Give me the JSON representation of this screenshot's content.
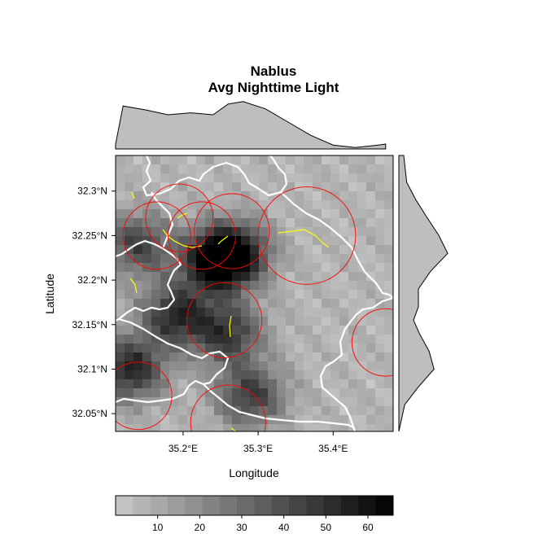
{
  "title": {
    "line1": "Nablus",
    "line2": "Avg Nighttime Light"
  },
  "axes": {
    "xlabel": "Longitude",
    "ylabel": "Latitude",
    "xticks": [
      {
        "value": 35.2,
        "label": "35.2°E"
      },
      {
        "value": 35.3,
        "label": "35.3°E"
      },
      {
        "value": 35.4,
        "label": "35.4°E"
      }
    ],
    "yticks": [
      {
        "value": 32.3,
        "label": "32.3°N"
      },
      {
        "value": 32.25,
        "label": "32.25°N"
      },
      {
        "value": 32.2,
        "label": "32.2°N"
      },
      {
        "value": 32.15,
        "label": "32.15°N"
      },
      {
        "value": 32.1,
        "label": "32.1°N"
      },
      {
        "value": 32.05,
        "label": "32.05°N"
      }
    ]
  },
  "colorbar": {
    "min": 0,
    "max": 66,
    "ticks": [
      {
        "value": 10,
        "label": "10"
      },
      {
        "value": 20,
        "label": "20"
      },
      {
        "value": 30,
        "label": "30"
      },
      {
        "value": 40,
        "label": "40"
      },
      {
        "value": 50,
        "label": "50"
      },
      {
        "value": 60,
        "label": "60"
      }
    ]
  },
  "colors": {
    "raster_low": "#c8c8c8",
    "raster_high": "#000000",
    "boundary": "#ffffff",
    "circles": "#ff0000",
    "roads": "#ffff00",
    "density_fill": "#bebebe"
  },
  "chart_data": {
    "type": "heatmap",
    "title": "Nablus\nAvg Nighttime Light",
    "xlabel": "Longitude",
    "ylabel": "Latitude",
    "xlim": [
      35.11,
      35.48
    ],
    "ylim": [
      32.03,
      32.34
    ],
    "value_range": [
      0,
      66
    ],
    "hotspots": [
      {
        "lon": 35.27,
        "lat": 32.23,
        "value": 62
      },
      {
        "lon": 35.24,
        "lat": 32.22,
        "value": 60
      },
      {
        "lon": 35.13,
        "lat": 32.1,
        "value": 58
      },
      {
        "lon": 35.19,
        "lat": 32.16,
        "value": 55
      },
      {
        "lon": 35.26,
        "lat": 32.14,
        "value": 50
      },
      {
        "lon": 35.29,
        "lat": 32.07,
        "value": 48
      },
      {
        "lon": 35.14,
        "lat": 32.24,
        "value": 45
      }
    ],
    "buffer_circles": [
      {
        "lon": 35.165,
        "lat": 32.25,
        "radius_deg": 0.045
      },
      {
        "lon": 35.195,
        "lat": 32.27,
        "radius_deg": 0.045
      },
      {
        "lon": 35.225,
        "lat": 32.25,
        "radius_deg": 0.045
      },
      {
        "lon": 35.265,
        "lat": 32.255,
        "radius_deg": 0.05
      },
      {
        "lon": 35.365,
        "lat": 32.25,
        "radius_deg": 0.065
      },
      {
        "lon": 35.255,
        "lat": 32.155,
        "radius_deg": 0.05
      },
      {
        "lon": 35.26,
        "lat": 32.04,
        "radius_deg": 0.05
      },
      {
        "lon": 35.14,
        "lat": 32.07,
        "radius_deg": 0.045
      },
      {
        "lon": 35.47,
        "lat": 32.13,
        "radius_deg": 0.045
      }
    ],
    "lon_marginal": [
      {
        "lon": 35.11,
        "density": 0.1
      },
      {
        "lon": 35.12,
        "density": 0.88
      },
      {
        "lon": 35.15,
        "density": 0.8
      },
      {
        "lon": 35.18,
        "density": 0.7
      },
      {
        "lon": 35.21,
        "density": 0.74
      },
      {
        "lon": 35.24,
        "density": 0.7
      },
      {
        "lon": 35.26,
        "density": 0.92
      },
      {
        "lon": 35.28,
        "density": 0.97
      },
      {
        "lon": 35.31,
        "density": 0.82
      },
      {
        "lon": 35.34,
        "density": 0.55
      },
      {
        "lon": 35.37,
        "density": 0.28
      },
      {
        "lon": 35.4,
        "density": 0.08
      },
      {
        "lon": 35.43,
        "density": 0.03
      },
      {
        "lon": 35.46,
        "density": 0.08
      },
      {
        "lon": 35.47,
        "density": 0.1
      }
    ],
    "lat_marginal": [
      {
        "lat": 32.34,
        "density": 0.1
      },
      {
        "lat": 32.31,
        "density": 0.16
      },
      {
        "lat": 32.29,
        "density": 0.35
      },
      {
        "lat": 32.27,
        "density": 0.58
      },
      {
        "lat": 32.25,
        "density": 0.82
      },
      {
        "lat": 32.23,
        "density": 1.0
      },
      {
        "lat": 32.21,
        "density": 0.65
      },
      {
        "lat": 32.19,
        "density": 0.4
      },
      {
        "lat": 32.17,
        "density": 0.4
      },
      {
        "lat": 32.155,
        "density": 0.3
      },
      {
        "lat": 32.14,
        "density": 0.42
      },
      {
        "lat": 32.12,
        "density": 0.62
      },
      {
        "lat": 32.1,
        "density": 0.72
      },
      {
        "lat": 32.08,
        "density": 0.4
      },
      {
        "lat": 32.06,
        "density": 0.12
      },
      {
        "lat": 32.03,
        "density": 0.0
      }
    ]
  }
}
